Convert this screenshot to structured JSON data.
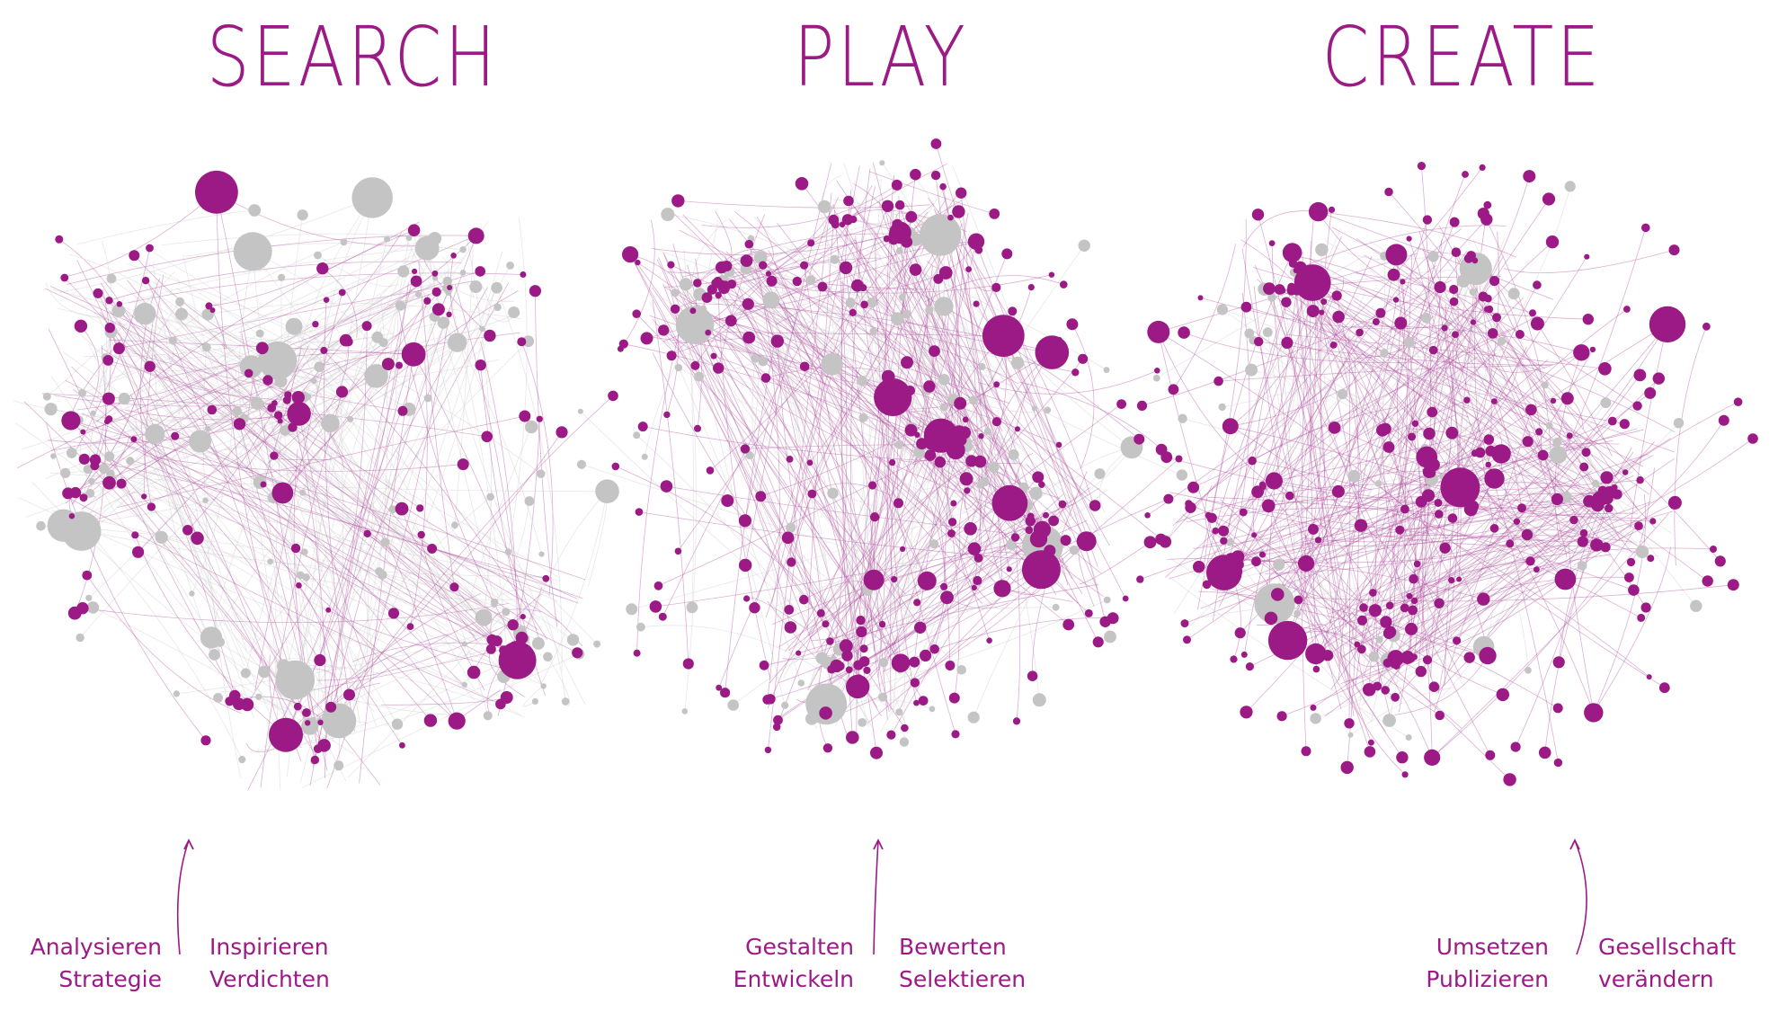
{
  "phases": [
    {
      "title": "SEARCH",
      "left_labels": [
        "Analysieren",
        "Strategie"
      ],
      "right_labels": [
        "Inspirieren",
        "Verdichten"
      ]
    },
    {
      "title": "PLAY",
      "left_labels": [
        "Gestalten",
        "Entwickeln"
      ],
      "right_labels": [
        "Bewerten",
        "Selektieren"
      ]
    },
    {
      "title": "CREATE",
      "left_labels": [
        "Umsetzen",
        "Publizieren"
      ],
      "right_labels": [
        "Gesellschaft",
        "verändern"
      ]
    }
  ],
  "colors": {
    "accent": "#9c1a85",
    "node_grey": "#c4c4c4",
    "edge_accent": "#b24fa0",
    "edge_grey": "#d4d4d4"
  },
  "network": {
    "accent_share": [
      0.45,
      0.72,
      0.85
    ]
  }
}
